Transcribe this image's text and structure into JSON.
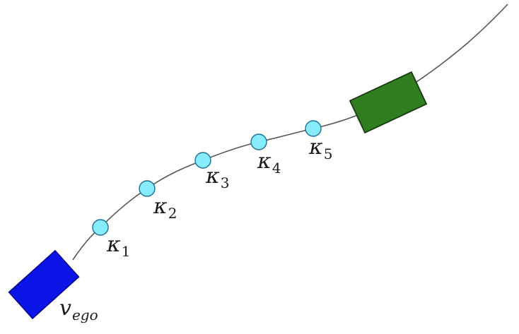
{
  "colors": {
    "background": "#ffffff",
    "trajectory": "#555555",
    "ego_vehicle": "#0a14e6",
    "ego_vehicle_border": "#00008a",
    "target_vehicle": "#2f7d1f",
    "target_vehicle_border": "#1a3a12",
    "waypoint_fill": "#88ecff",
    "waypoint_border": "#1b6f97"
  },
  "ego_label": {
    "main": "v",
    "subscript": "ego"
  },
  "waypoints": [
    {
      "symbol": "κ",
      "subscript": "1"
    },
    {
      "symbol": "κ",
      "subscript": "2"
    },
    {
      "symbol": "κ",
      "subscript": "3"
    },
    {
      "symbol": "κ",
      "subscript": "4"
    },
    {
      "symbol": "κ",
      "subscript": "5"
    }
  ]
}
